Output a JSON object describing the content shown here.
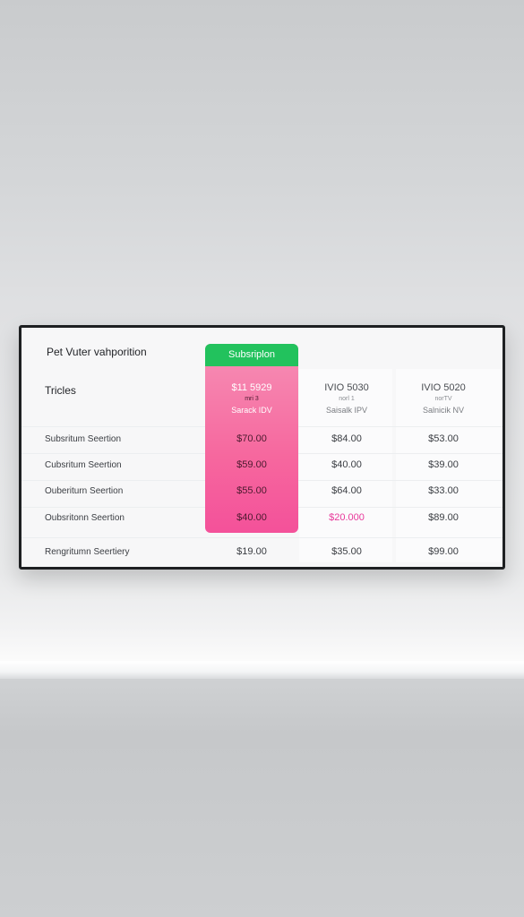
{
  "table": {
    "title": "Pet Vuter vahporition",
    "tricles_label": "Tricles",
    "highlight_header": "Subsriplon",
    "plans": [
      {
        "name": "$11 5929",
        "sub": "mri 3",
        "meta": "Sarack IDV"
      },
      {
        "name": "IVIO 5030",
        "sub": "norl 1",
        "meta": "Saisalk IPV"
      },
      {
        "name": "IVIO 5020",
        "sub": "norTV",
        "meta": "Salnicik NV"
      }
    ],
    "rows": [
      {
        "label": "Subsritum Seertion",
        "values": [
          "$70.00",
          "$84.00",
          "$53.00"
        ]
      },
      {
        "label": "Cubsritum Seertion",
        "values": [
          "$59.00",
          "$40.00",
          "$39.00"
        ]
      },
      {
        "label": "Ouberiturn Seertion",
        "values": [
          "$55.00",
          "$64.00",
          "$33.00"
        ]
      },
      {
        "label": "Oubsritonn Seertion",
        "values": [
          "$40.00",
          "$20.000",
          "$89.00"
        ]
      },
      {
        "label": "Rengritumn Seertiery",
        "values": [
          "$19.00",
          "$35.00",
          "$99.00"
        ]
      }
    ]
  },
  "colors": {
    "highlight_green": "#22c25d",
    "highlight_pink": "#f4519a",
    "accent_value": "#e8389a"
  }
}
